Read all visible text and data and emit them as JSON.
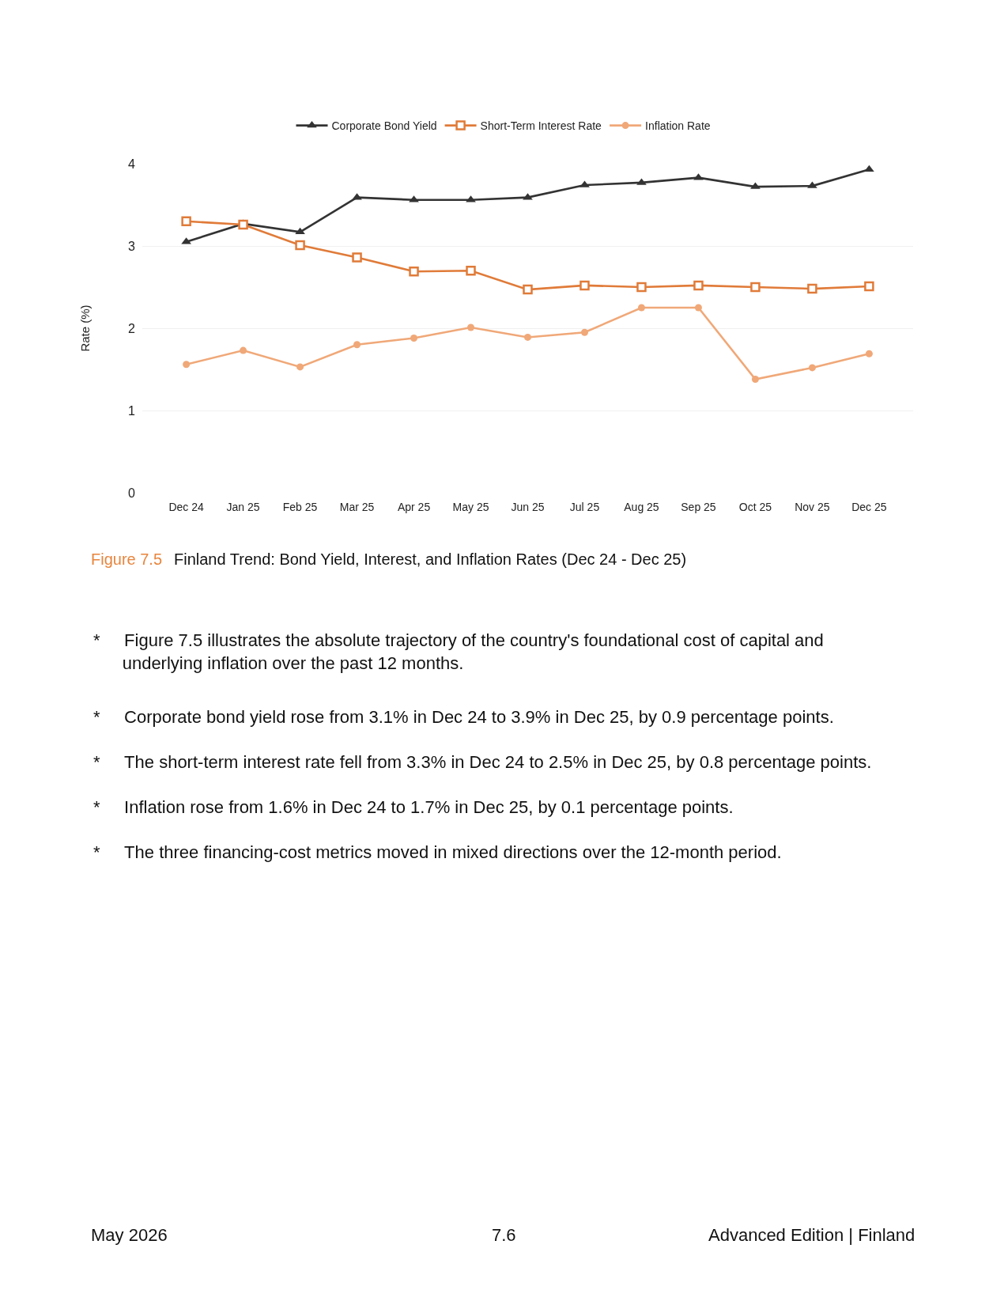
{
  "chart_data": {
    "type": "line",
    "title": "Finland Trend: Bond Yield, Interest, and Inflation Rates (Dec 24 - Dec 25)",
    "ylabel": "Rate (%)",
    "categories": [
      "Dec 24",
      "Jan 25",
      "Feb 25",
      "Mar 25",
      "Apr 25",
      "May 25",
      "Jun 25",
      "Jul 25",
      "Aug 25",
      "Sep 25",
      "Oct 25",
      "Nov 25",
      "Dec 25"
    ],
    "series": [
      {
        "name": "Corporate Bond Yield",
        "color": "#333333",
        "marker": "triangle",
        "values": [
          3.05,
          3.27,
          3.17,
          3.59,
          3.56,
          3.56,
          3.59,
          3.74,
          3.77,
          3.83,
          3.72,
          3.73,
          3.93
        ]
      },
      {
        "name": "Short-Term Interest Rate",
        "color": "#e07b39",
        "marker": "square",
        "values": [
          3.3,
          3.26,
          3.01,
          2.86,
          2.69,
          2.7,
          2.47,
          2.52,
          2.5,
          2.52,
          2.5,
          2.48,
          2.51
        ]
      },
      {
        "name": "Inflation Rate",
        "color": "#f0a878",
        "marker": "circle",
        "values": [
          1.56,
          1.73,
          1.53,
          1.8,
          1.88,
          2.01,
          1.89,
          1.95,
          2.25,
          2.25,
          1.38,
          1.52,
          1.69
        ]
      }
    ],
    "ylim": [
      0,
      4
    ],
    "yticks": [
      0,
      1,
      2,
      3,
      4
    ],
    "grid": "y",
    "legend": "top",
    "annotations": [
      "Figure 7.5",
      "* Figure 7.5 illustrates the absolute trajectory of the country's foundational cost of capital and underlying inflation over the past 12 months.",
      "* Corporate bond yield rose from 3.1% in Dec 24 to 3.9% in Dec 25, by 0.9 percentage points.",
      "* The short-term interest rate fell from 3.3% in Dec 24 to 2.5% in Dec 25, by 0.8 percentage points.",
      "* Inflation rose from 1.6% in Dec 24 to 1.7% in Dec 25, by 0.1 percentage points.",
      "* The three financing-cost metrics moved in mixed directions over the 12-month period.",
      "May 2026",
      "7.6",
      "Advanced Edition | Finland"
    ]
  }
}
